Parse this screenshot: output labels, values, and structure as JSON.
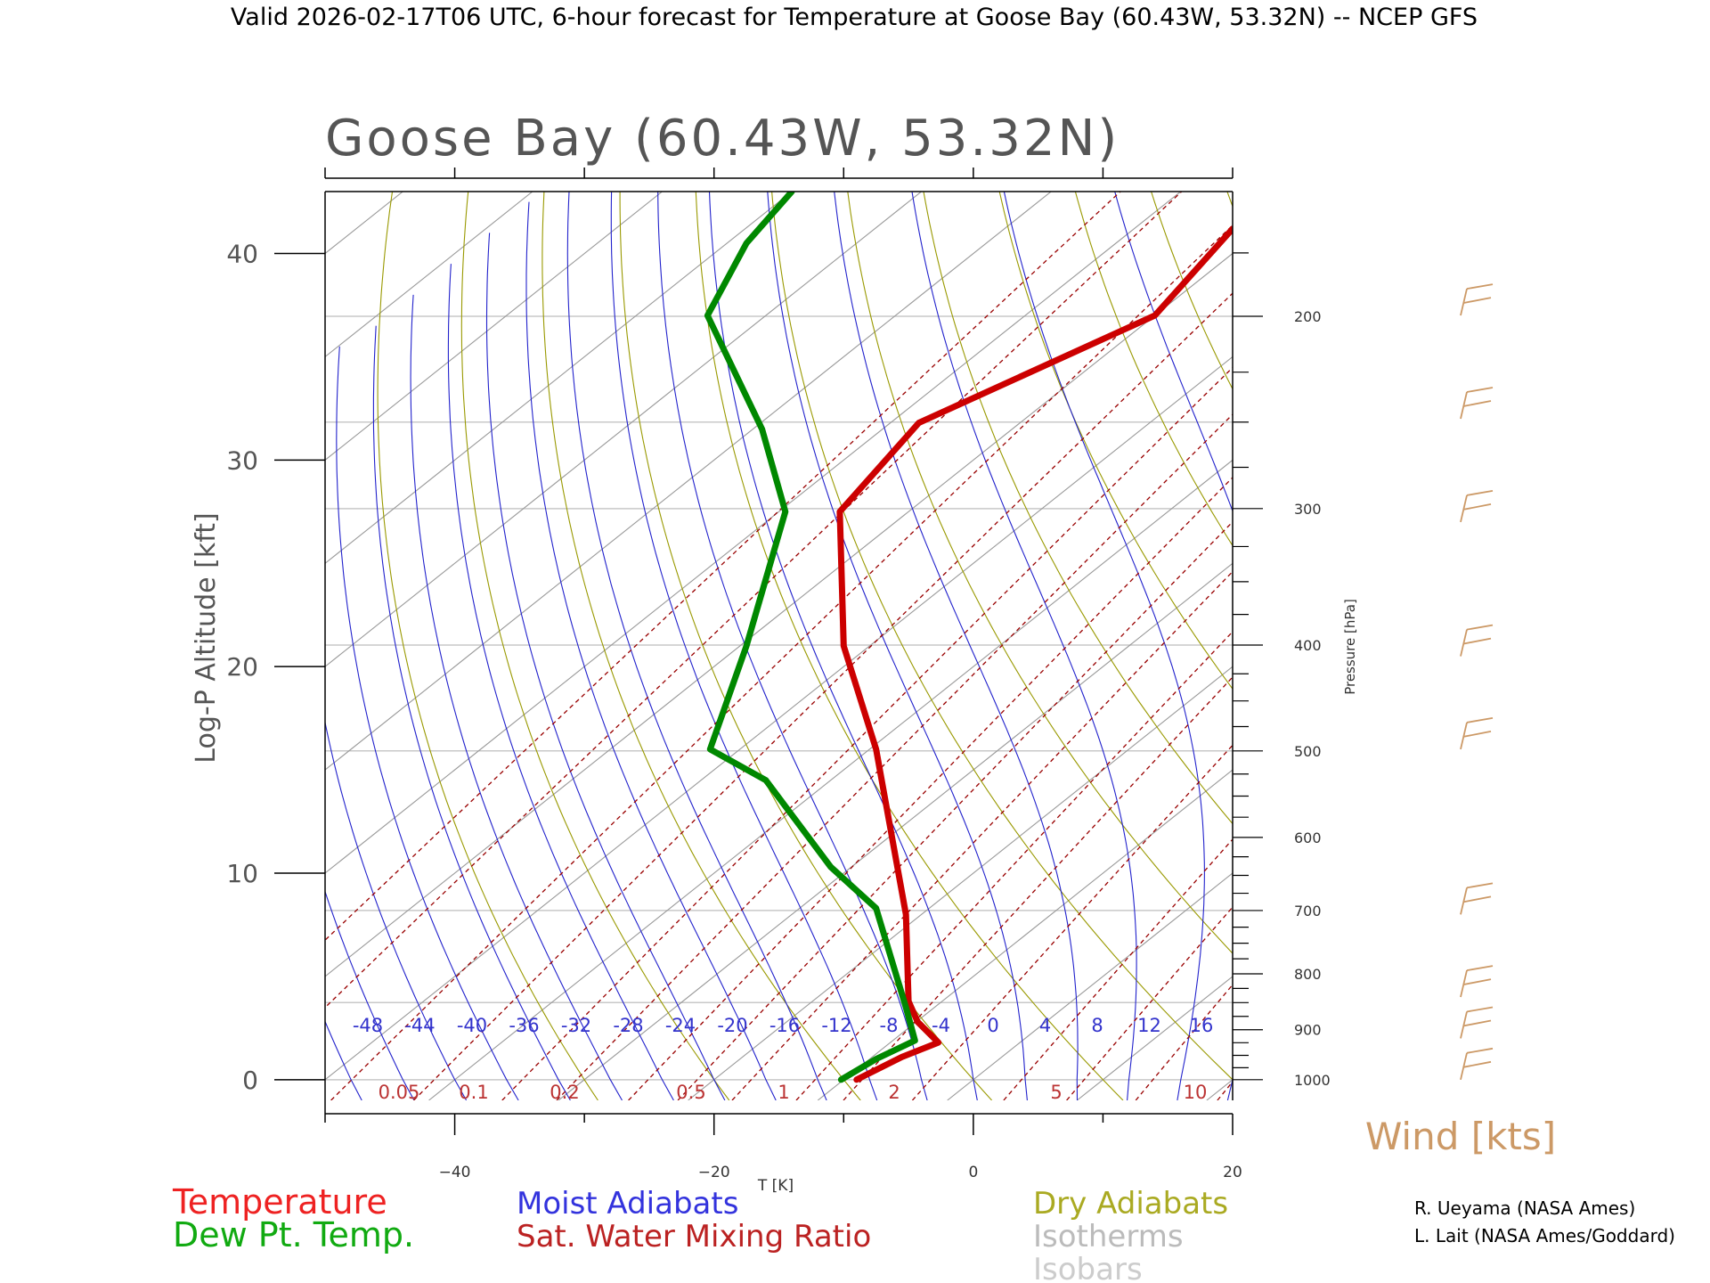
{
  "header": {
    "text": "Valid 2026-02-17T06 UTC, 6-hour forecast for Temperature at Goose Bay (60.43W, 53.32N) -- NCEP GFS"
  },
  "chart_data": {
    "type": "line",
    "title": "Goose Bay (60.43W, 53.32N)",
    "xlabel": "T [K]",
    "ylabel": "Log-P Altitude [kft]",
    "y2label": "Pressure [hPa]",
    "xlim": [
      -50,
      20
    ],
    "ylim": [
      -1,
      43
    ],
    "x_ticks": [
      -40,
      -20,
      0,
      20
    ],
    "x_tick_labels": [
      "−40",
      "−20",
      "0",
      "20"
    ],
    "y_ticks": [
      0,
      10,
      20,
      30,
      40
    ],
    "y_tick_labels": [
      "0",
      "10",
      "20",
      "30",
      "40"
    ],
    "pressure_labels": [
      {
        "p": 1000,
        "label": "1000"
      },
      {
        "p": 900,
        "label": "900"
      },
      {
        "p": 800,
        "label": "800"
      },
      {
        "p": 700,
        "label": "700"
      },
      {
        "p": 600,
        "label": "600"
      },
      {
        "p": 500,
        "label": "500"
      },
      {
        "p": 400,
        "label": "400"
      },
      {
        "p": 300,
        "label": "300"
      },
      {
        "p": 200,
        "label": "200"
      }
    ],
    "pressure_minor_ticks": [
      1000,
      975,
      950,
      925,
      900,
      875,
      850,
      825,
      800,
      775,
      750,
      725,
      700,
      675,
      650,
      625,
      600,
      575,
      550,
      525,
      500,
      475,
      450,
      425,
      400,
      375,
      350,
      325,
      300,
      275,
      250,
      225,
      200,
      175
    ],
    "isobar_lines": [
      1000,
      850,
      700,
      500,
      400,
      300,
      250,
      200
    ],
    "series": [
      {
        "name": "Temperature",
        "color": "#cc0000",
        "points": [
          [
            -9,
            0
          ],
          [
            -5.5,
            1.1
          ],
          [
            -2.7,
            1.8
          ],
          [
            -4.3,
            2.8
          ],
          [
            -5.0,
            3.8
          ],
          [
            -5.2,
            8
          ],
          [
            -7.5,
            16
          ],
          [
            -10.0,
            21
          ],
          [
            -10.3,
            27.5
          ],
          [
            -4.2,
            31.8
          ],
          [
            14.0,
            37
          ],
          [
            20,
            41.2
          ]
        ]
      },
      {
        "name": "Dew Pt. Temp.",
        "color": "#008800",
        "points": [
          [
            -10.2,
            0
          ],
          [
            -7.5,
            1.0
          ],
          [
            -4.5,
            1.9
          ],
          [
            -5.2,
            3.5
          ],
          [
            -7.5,
            8.3
          ],
          [
            -11.0,
            10.3
          ],
          [
            -16.0,
            14.5
          ],
          [
            -20.3,
            16
          ],
          [
            -17.5,
            21
          ],
          [
            -14.5,
            27.5
          ],
          [
            -16.3,
            31.5
          ],
          [
            -20.5,
            37
          ],
          [
            -17.5,
            40.5
          ],
          [
            -14.0,
            43
          ]
        ]
      }
    ],
    "moist_adiabat_labels": [
      "-48",
      "-44",
      "-40",
      "-36",
      "-32",
      "-28",
      "-24",
      "-20",
      "-16",
      "-12",
      "-8",
      "-4",
      "0",
      "4",
      "8",
      "12",
      "16"
    ],
    "mixing_ratio_labels": [
      "0.05",
      "0.1",
      "0.2",
      "0.5",
      "1",
      "2",
      "5",
      "10"
    ],
    "wind_label": "Wind [kts]",
    "wind_barb_altitudes_kft": [
      0,
      2,
      4,
      8,
      16,
      20.5,
      27,
      32,
      37
    ],
    "legend": [
      {
        "label": "Temperature",
        "color": "#ee2222"
      },
      {
        "label": "Dew Pt. Temp.",
        "color": "#11aa11"
      },
      {
        "label": "Moist Adiabats",
        "color": "#3333dd"
      },
      {
        "label": "Sat. Water Mixing Ratio",
        "color": "#bb2222"
      },
      {
        "label": "Dry Adiabats",
        "color": "#aaaa22"
      },
      {
        "label": "Isotherms",
        "color": "#bbbbbb"
      },
      {
        "label": "Isobars",
        "color": "#cccccc"
      }
    ],
    "credits": [
      "R. Ueyama (NASA Ames)",
      "L. Lait (NASA Ames/Goddard)"
    ]
  },
  "colors": {
    "isotherm": "#999999",
    "isobar": "#c8c8c8",
    "dry_adiabat": "#999900",
    "moist_adiabat": "#2222cc",
    "mixing_ratio": "#990000",
    "wind": "#cc9966",
    "axis": "#000000",
    "text": "#555555"
  }
}
